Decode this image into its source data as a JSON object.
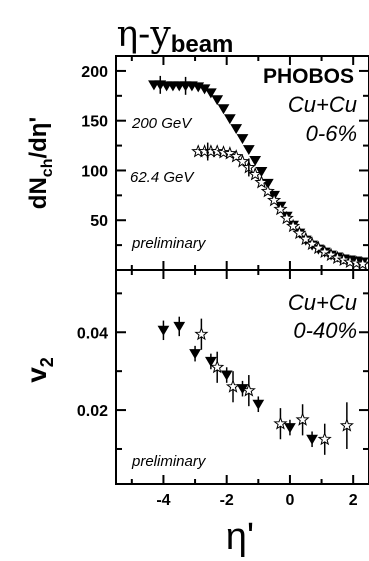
{
  "figure": {
    "title_main": "η-y",
    "title_sub": "beam",
    "xlabel": "η'",
    "experiment": "PHOBOS"
  },
  "top_panel": {
    "ylabel_main": "dN",
    "ylabel_sub": "ch",
    "ylabel_tail": "/dη'",
    "system": "Cu+Cu",
    "centrality": "0-6%",
    "label_200": "200 GeV",
    "label_62": "62.4 GeV",
    "note": "preliminary"
  },
  "bottom_panel": {
    "ylabel_main": "v",
    "ylabel_sub": "2",
    "system": "Cu+Cu",
    "centrality": "0-40%",
    "note": "preliminary"
  },
  "chart_data": [
    {
      "type": "scatter",
      "panel": "top",
      "xlim": [
        -5.5,
        2.5
      ],
      "ylim": [
        0,
        215
      ],
      "yticks": [
        50,
        100,
        150,
        200
      ],
      "yticklabels": [
        "50",
        "100",
        "150",
        "200"
      ],
      "xticks": [
        -4,
        -2,
        0,
        2
      ],
      "series": [
        {
          "name": "200 GeV",
          "marker": "filled-triangle-down",
          "x": [
            -4.3,
            -4.1,
            -3.9,
            -3.7,
            -3.5,
            -3.3,
            -3.1,
            -2.9,
            -2.7,
            -2.5,
            -2.3,
            -2.1,
            -1.9,
            -1.7,
            -1.5,
            -1.3,
            -1.1,
            -0.9,
            -0.7,
            -0.5,
            -0.3,
            -0.1,
            0.1,
            0.3,
            0.5,
            0.7,
            0.9,
            1.1,
            1.3,
            1.5,
            1.7,
            1.9,
            2.1,
            2.3
          ],
          "y": [
            186,
            186,
            185,
            185,
            185,
            185,
            185,
            184,
            182,
            178,
            171,
            162,
            152,
            142,
            132,
            121,
            110,
            99,
            87,
            75,
            64,
            54,
            45,
            37,
            30,
            25,
            21,
            18,
            15,
            13,
            11,
            10,
            9,
            8
          ]
        },
        {
          "name": "62.4 GeV",
          "marker": "open-star",
          "x": [
            -2.9,
            -2.7,
            -2.5,
            -2.3,
            -2.1,
            -1.9,
            -1.7,
            -1.5,
            -1.3,
            -1.1,
            -0.9,
            -0.7,
            -0.5,
            -0.3,
            -0.1,
            0.1,
            0.3,
            0.5,
            0.7,
            0.9,
            1.1,
            1.3,
            1.5,
            1.7,
            1.9,
            2.1,
            2.3
          ],
          "y": [
            119,
            119,
            119,
            119,
            118,
            117,
            114,
            109,
            103,
            96,
            88,
            79,
            70,
            61,
            52,
            44,
            37,
            31,
            26,
            22,
            18,
            15,
            12,
            10,
            8,
            7,
            6
          ]
        }
      ]
    },
    {
      "type": "scatter",
      "panel": "bottom",
      "xlim": [
        -5.5,
        2.5
      ],
      "ylim": [
        0.001,
        0.056
      ],
      "yticks": [
        0.02,
        0.04
      ],
      "yticklabels": [
        "0.02",
        "0.04"
      ],
      "xticks": [
        -4,
        -2,
        0,
        2
      ],
      "xticklabels": [
        "-4",
        "-2",
        "0",
        "2"
      ],
      "series": [
        {
          "name": "200 GeV",
          "marker": "filled-triangle-down",
          "x": [
            -4.0,
            -3.5,
            -3.0,
            -2.5,
            -2.0,
            -1.5,
            -1.0,
            0.0,
            0.7
          ],
          "y": [
            0.0405,
            0.0415,
            0.0345,
            0.0325,
            0.029,
            0.0255,
            0.0215,
            0.0155,
            0.0125
          ],
          "err": [
            0.0025,
            0.0025,
            0.002,
            0.002,
            0.002,
            0.002,
            0.002,
            0.002,
            0.002
          ]
        },
        {
          "name": "62.4 GeV",
          "marker": "open-star",
          "x": [
            -2.8,
            -2.3,
            -1.8,
            -1.3,
            -0.3,
            0.4,
            1.1,
            1.8
          ],
          "y": [
            0.0395,
            0.031,
            0.026,
            0.025,
            0.0165,
            0.0175,
            0.0125,
            0.016
          ],
          "err": [
            0.004,
            0.004,
            0.004,
            0.004,
            0.004,
            0.004,
            0.004,
            0.006
          ]
        }
      ]
    }
  ]
}
